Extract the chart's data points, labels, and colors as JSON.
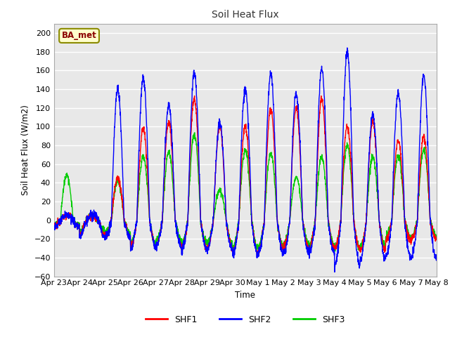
{
  "title": "Soil Heat Flux",
  "ylabel": "Soil Heat Flux (W/m2)",
  "xlabel": "Time",
  "ylim": [
    -60,
    210
  ],
  "yticks": [
    -60,
    -40,
    -20,
    0,
    20,
    40,
    60,
    80,
    100,
    120,
    140,
    160,
    180,
    200
  ],
  "annotation_text": "BA_met",
  "annotation_color": "#8B0000",
  "annotation_bg": "#FFFFCC",
  "annotation_edge": "#8B8B00",
  "line_colors": {
    "SHF1": "#FF0000",
    "SHF2": "#0000FF",
    "SHF3": "#00CC00"
  },
  "line_width": 1.0,
  "fig_bg": "#FFFFFF",
  "axes_bg": "#E8E8E8",
  "grid_color": "#FFFFFF",
  "x_tick_labels": [
    "Apr 23",
    "Apr 24",
    "Apr 25",
    "Apr 26",
    "Apr 27",
    "Apr 28",
    "Apr 29",
    "Apr 30",
    "May 1",
    "May 2",
    "May 3",
    "May 4",
    "May 5",
    "May 6",
    "May 7",
    "May 8"
  ],
  "legend_entries": [
    "SHF1",
    "SHF2",
    "SHF3"
  ],
  "daily_peaks_shf1": [
    5,
    5,
    45,
    98,
    105,
    130,
    100,
    100,
    120,
    120,
    130,
    100,
    105,
    85,
    90
  ],
  "daily_peaks_shf2": [
    5,
    5,
    140,
    152,
    123,
    158,
    105,
    140,
    157,
    135,
    162,
    180,
    112,
    137,
    155
  ],
  "daily_peaks_shf3": [
    48,
    5,
    42,
    68,
    73,
    92,
    32,
    75,
    72,
    46,
    68,
    80,
    68,
    68,
    75
  ],
  "daily_min_shf1": [
    -7,
    -15,
    -18,
    -28,
    -27,
    -30,
    -30,
    -35,
    -33,
    -30,
    -30,
    -30,
    -33,
    -22,
    -20
  ],
  "daily_min_shf2": [
    -7,
    -18,
    -18,
    -30,
    -28,
    -32,
    -32,
    -38,
    -35,
    -35,
    -35,
    -48,
    -42,
    -40,
    -42
  ],
  "daily_min_shf3": [
    -5,
    -12,
    -14,
    -25,
    -22,
    -25,
    -25,
    -30,
    -28,
    -25,
    -28,
    -30,
    -28,
    -18,
    -18
  ]
}
